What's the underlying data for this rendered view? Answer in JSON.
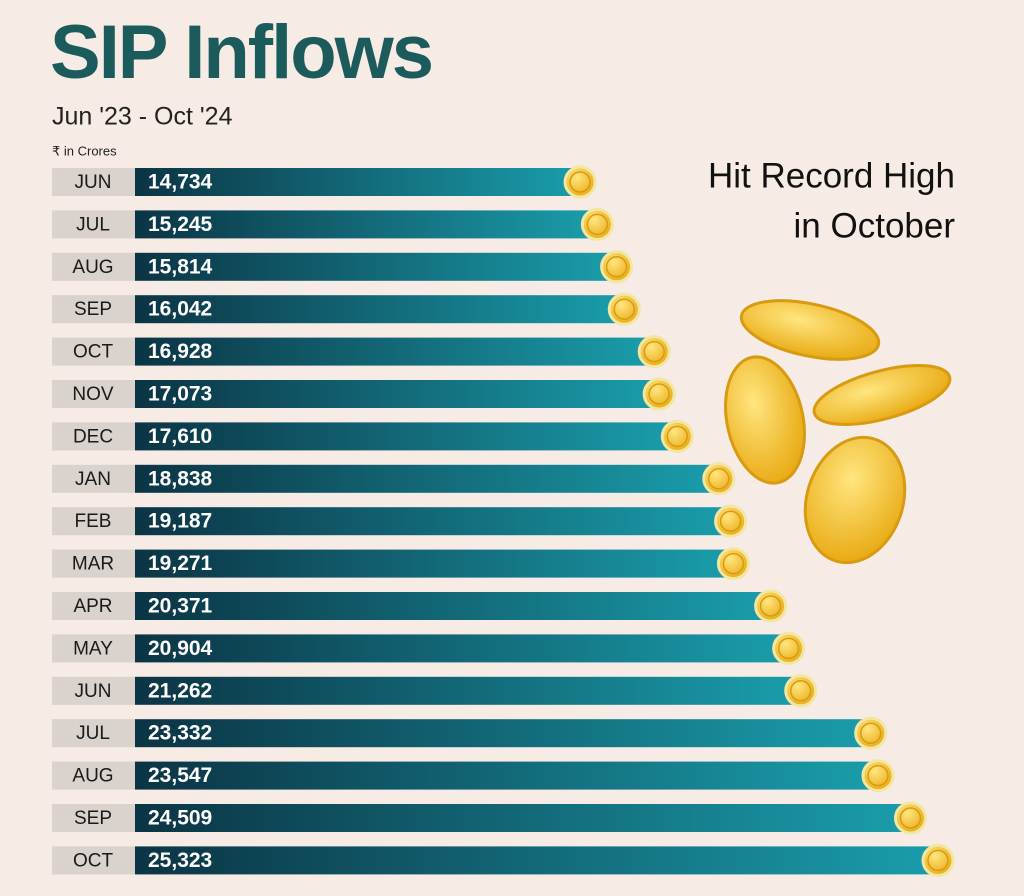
{
  "chart_data": {
    "type": "bar",
    "orientation": "horizontal",
    "title": "SIP Inflows",
    "subtitle": "Jun '23 - Oct '24",
    "unit_note": "₹ in Crores",
    "annotation": [
      "Hit Record High",
      "in October"
    ],
    "categories": [
      "JUN",
      "JUL",
      "AUG",
      "SEP",
      "OCT",
      "NOV",
      "DEC",
      "JAN",
      "FEB",
      "MAR",
      "APR",
      "MAY",
      "JUN",
      "JUL",
      "AUG",
      "SEP",
      "OCT"
    ],
    "values": [
      14734,
      15245,
      15814,
      16042,
      16928,
      17073,
      17610,
      18838,
      19187,
      19271,
      20371,
      20904,
      21262,
      23332,
      23547,
      24509,
      25323
    ],
    "value_labels": [
      "14,734",
      "15,245",
      "15,814",
      "16,042",
      "16,928",
      "17,073",
      "17,610",
      "18,838",
      "19,187",
      "19,271",
      "20,371",
      "20,904",
      "21,262",
      "23,332",
      "23,547",
      "24,509",
      "25,323"
    ],
    "color": "#13606e"
  }
}
